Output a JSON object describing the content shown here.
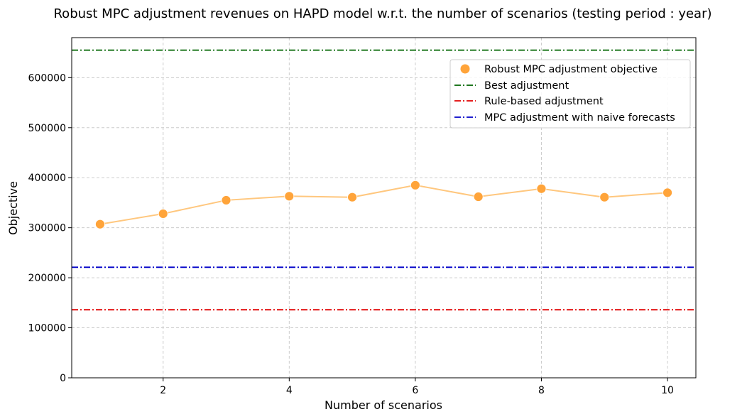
{
  "chart_data": {
    "type": "line",
    "title": "Robust MPC adjustment revenues on HAPD model w.r.t. the number of scenarios (testing period : year)",
    "xlabel": "Number of scenarios",
    "ylabel": "Objective",
    "xlim": [
      0.55,
      10.45
    ],
    "ylim": [
      0,
      680000
    ],
    "xticks": [
      2,
      4,
      6,
      8,
      10
    ],
    "yticks": [
      0,
      100000,
      200000,
      300000,
      400000,
      500000,
      600000
    ],
    "grid": true,
    "legend_position": "top-right",
    "series": [
      {
        "name": "Robust MPC adjustment objective",
        "kind": "scatter+line",
        "color": "#ffa43a",
        "line_color": "#ffc77e",
        "x": [
          1,
          2,
          3,
          4,
          5,
          6,
          7,
          8,
          9,
          10
        ],
        "y": [
          307000,
          328000,
          355000,
          363000,
          361000,
          385000,
          362000,
          378000,
          361000,
          370000
        ]
      }
    ],
    "reference_lines": [
      {
        "name": "Best adjustment",
        "y": 655000,
        "color": "#006400",
        "style": "dashdot"
      },
      {
        "name": "Rule-based adjustment",
        "y": 136000,
        "color": "#e00000",
        "style": "dashdot"
      },
      {
        "name": "MPC adjustment with naive forecasts",
        "y": 221000,
        "color": "#0000c8",
        "style": "dashdot"
      }
    ]
  }
}
